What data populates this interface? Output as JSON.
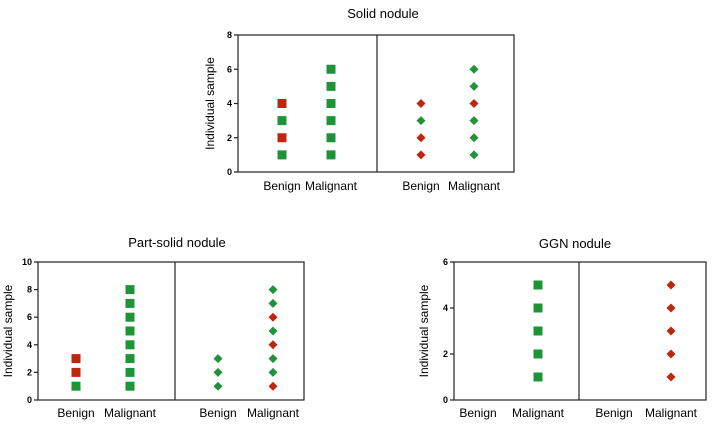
{
  "colors": {
    "green": "#1f9338",
    "red": "#c0250e",
    "axis": "#222222"
  },
  "chart_data": [
    {
      "type": "scatter",
      "title": "Solid nodule",
      "ylabel": "Individual sample",
      "ylim": [
        0,
        8
      ],
      "yticks": [
        0,
        2,
        4,
        6,
        8
      ],
      "categories": [
        "Benign",
        "Malignant",
        "Benign",
        "Malignant"
      ],
      "series": [
        {
          "name": "Benign (squares)",
          "marker": "square",
          "points": [
            {
              "y": 1,
              "color": "green"
            },
            {
              "y": 2,
              "color": "red"
            },
            {
              "y": 3,
              "color": "green"
            },
            {
              "y": 4,
              "color": "red"
            }
          ]
        },
        {
          "name": "Malignant (squares)",
          "marker": "square",
          "points": [
            {
              "y": 1,
              "color": "green"
            },
            {
              "y": 2,
              "color": "green"
            },
            {
              "y": 3,
              "color": "green"
            },
            {
              "y": 4,
              "color": "green"
            },
            {
              "y": 5,
              "color": "green"
            },
            {
              "y": 6,
              "color": "green"
            }
          ]
        },
        {
          "name": "Benign (diamonds)",
          "marker": "diamond",
          "points": [
            {
              "y": 1,
              "color": "red"
            },
            {
              "y": 2,
              "color": "red"
            },
            {
              "y": 3,
              "color": "green"
            },
            {
              "y": 4,
              "color": "red"
            }
          ]
        },
        {
          "name": "Malignant (diamonds)",
          "marker": "diamond",
          "points": [
            {
              "y": 1,
              "color": "green"
            },
            {
              "y": 2,
              "color": "green"
            },
            {
              "y": 3,
              "color": "green"
            },
            {
              "y": 4,
              "color": "red"
            },
            {
              "y": 5,
              "color": "green"
            },
            {
              "y": 6,
              "color": "green"
            }
          ]
        }
      ]
    },
    {
      "type": "scatter",
      "title": "Part-solid nodule",
      "ylabel": "Individual sample",
      "ylim": [
        0,
        10
      ],
      "yticks": [
        0,
        2,
        4,
        6,
        8,
        10
      ],
      "categories": [
        "Benign",
        "Malignant",
        "Benign",
        "Malignant"
      ],
      "series": [
        {
          "name": "Benign (squares)",
          "marker": "square",
          "points": [
            {
              "y": 1,
              "color": "green"
            },
            {
              "y": 2,
              "color": "red"
            },
            {
              "y": 3,
              "color": "red"
            }
          ]
        },
        {
          "name": "Malignant (squares)",
          "marker": "square",
          "points": [
            {
              "y": 1,
              "color": "green"
            },
            {
              "y": 2,
              "color": "green"
            },
            {
              "y": 3,
              "color": "green"
            },
            {
              "y": 4,
              "color": "green"
            },
            {
              "y": 5,
              "color": "green"
            },
            {
              "y": 6,
              "color": "green"
            },
            {
              "y": 7,
              "color": "green"
            },
            {
              "y": 8,
              "color": "green"
            }
          ]
        },
        {
          "name": "Benign (diamonds)",
          "marker": "diamond",
          "points": [
            {
              "y": 1,
              "color": "green"
            },
            {
              "y": 2,
              "color": "green"
            },
            {
              "y": 3,
              "color": "green"
            }
          ]
        },
        {
          "name": "Malignant (diamonds)",
          "marker": "diamond",
          "points": [
            {
              "y": 1,
              "color": "red"
            },
            {
              "y": 2,
              "color": "green"
            },
            {
              "y": 3,
              "color": "green"
            },
            {
              "y": 4,
              "color": "red"
            },
            {
              "y": 5,
              "color": "green"
            },
            {
              "y": 6,
              "color": "red"
            },
            {
              "y": 7,
              "color": "green"
            },
            {
              "y": 8,
              "color": "green"
            }
          ]
        }
      ]
    },
    {
      "type": "scatter",
      "title": "GGN nodule",
      "ylabel": "Individual sample",
      "ylim": [
        0,
        6
      ],
      "yticks": [
        0,
        2,
        4,
        6
      ],
      "categories": [
        "Benign",
        "Malignant",
        "Benign",
        "Malignant"
      ],
      "series": [
        {
          "name": "Benign (squares)",
          "marker": "square",
          "points": []
        },
        {
          "name": "Malignant (squares)",
          "marker": "square",
          "points": [
            {
              "y": 1,
              "color": "green"
            },
            {
              "y": 2,
              "color": "green"
            },
            {
              "y": 3,
              "color": "green"
            },
            {
              "y": 4,
              "color": "green"
            },
            {
              "y": 5,
              "color": "green"
            }
          ]
        },
        {
          "name": "Benign (diamonds)",
          "marker": "diamond",
          "points": []
        },
        {
          "name": "Malignant (diamonds)",
          "marker": "diamond",
          "points": [
            {
              "y": 1,
              "color": "red"
            },
            {
              "y": 2,
              "color": "red"
            },
            {
              "y": 3,
              "color": "red"
            },
            {
              "y": 4,
              "color": "red"
            },
            {
              "y": 5,
              "color": "red"
            }
          ]
        }
      ]
    }
  ]
}
